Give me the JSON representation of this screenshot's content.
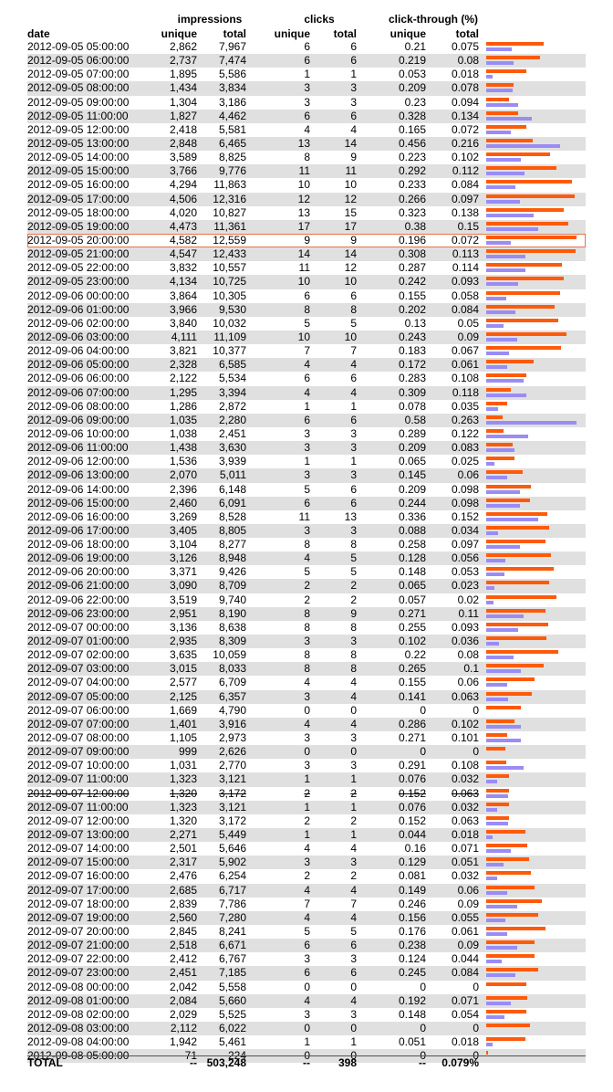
{
  "headers": {
    "group_impressions": "impressions",
    "group_clicks": "clicks",
    "group_ctr": "click-through (%)",
    "date": "date",
    "imp_unique": "unique",
    "imp_total": "total",
    "clk_unique": "unique",
    "clk_total": "total",
    "ctr_unique": "unique",
    "ctr_total": "total"
  },
  "rows": [
    [
      "2012-09-05 05:00:00",
      "2,862",
      "7,967",
      "6",
      "6",
      "0.21",
      "0.075"
    ],
    [
      "2012-09-05 06:00:00",
      "2,737",
      "7,474",
      "6",
      "6",
      "0.219",
      "0.08"
    ],
    [
      "2012-09-05 07:00:00",
      "1,895",
      "5,586",
      "1",
      "1",
      "0.053",
      "0.018"
    ],
    [
      "2012-09-05 08:00:00",
      "1,434",
      "3,834",
      "3",
      "3",
      "0.209",
      "0.078"
    ],
    [
      "2012-09-05 09:00:00",
      "1,304",
      "3,186",
      "3",
      "3",
      "0.23",
      "0.094"
    ],
    [
      "2012-09-05 11:00:00",
      "1,827",
      "4,462",
      "6",
      "6",
      "0.328",
      "0.134"
    ],
    [
      "2012-09-05 12:00:00",
      "2,418",
      "5,581",
      "4",
      "4",
      "0.165",
      "0.072"
    ],
    [
      "2012-09-05 13:00:00",
      "2,848",
      "6,465",
      "13",
      "14",
      "0.456",
      "0.216"
    ],
    [
      "2012-09-05 14:00:00",
      "3,589",
      "8,825",
      "8",
      "9",
      "0.223",
      "0.102"
    ],
    [
      "2012-09-05 15:00:00",
      "3,766",
      "9,776",
      "11",
      "11",
      "0.292",
      "0.112"
    ],
    [
      "2012-09-05 16:00:00",
      "4,294",
      "11,863",
      "10",
      "10",
      "0.233",
      "0.084"
    ],
    [
      "2012-09-05 17:00:00",
      "4,506",
      "12,316",
      "12",
      "12",
      "0.266",
      "0.097"
    ],
    [
      "2012-09-05 18:00:00",
      "4,020",
      "10,827",
      "13",
      "15",
      "0.323",
      "0.138"
    ],
    [
      "2012-09-05 19:00:00",
      "4,473",
      "11,361",
      "17",
      "17",
      "0.38",
      "0.15"
    ],
    [
      "2012-09-05 20:00:00",
      "4,582",
      "12,559",
      "9",
      "9",
      "0.196",
      "0.072"
    ],
    [
      "2012-09-05 21:00:00",
      "4,547",
      "12,433",
      "14",
      "14",
      "0.308",
      "0.113"
    ],
    [
      "2012-09-05 22:00:00",
      "3,832",
      "10,557",
      "11",
      "12",
      "0.287",
      "0.114"
    ],
    [
      "2012-09-05 23:00:00",
      "4,134",
      "10,725",
      "10",
      "10",
      "0.242",
      "0.093"
    ],
    [
      "2012-09-06 00:00:00",
      "3,864",
      "10,305",
      "6",
      "6",
      "0.155",
      "0.058"
    ],
    [
      "2012-09-06 01:00:00",
      "3,966",
      "9,530",
      "8",
      "8",
      "0.202",
      "0.084"
    ],
    [
      "2012-09-06 02:00:00",
      "3,840",
      "10,032",
      "5",
      "5",
      "0.13",
      "0.05"
    ],
    [
      "2012-09-06 03:00:00",
      "4,111",
      "11,109",
      "10",
      "10",
      "0.243",
      "0.09"
    ],
    [
      "2012-09-06 04:00:00",
      "3,821",
      "10,377",
      "7",
      "7",
      "0.183",
      "0.067"
    ],
    [
      "2012-09-06 05:00:00",
      "2,328",
      "6,585",
      "4",
      "4",
      "0.172",
      "0.061"
    ],
    [
      "2012-09-06 06:00:00",
      "2,122",
      "5,534",
      "6",
      "6",
      "0.283",
      "0.108"
    ],
    [
      "2012-09-06 07:00:00",
      "1,295",
      "3,394",
      "4",
      "4",
      "0.309",
      "0.118"
    ],
    [
      "2012-09-06 08:00:00",
      "1,286",
      "2,872",
      "1",
      "1",
      "0.078",
      "0.035"
    ],
    [
      "2012-09-06 09:00:00",
      "1,035",
      "2,280",
      "6",
      "6",
      "0.58",
      "0.263"
    ],
    [
      "2012-09-06 10:00:00",
      "1,038",
      "2,451",
      "3",
      "3",
      "0.289",
      "0.122"
    ],
    [
      "2012-09-06 11:00:00",
      "1,438",
      "3,630",
      "3",
      "3",
      "0.209",
      "0.083"
    ],
    [
      "2012-09-06 12:00:00",
      "1,536",
      "3,939",
      "1",
      "1",
      "0.065",
      "0.025"
    ],
    [
      "2012-09-06 13:00:00",
      "2,070",
      "5,011",
      "3",
      "3",
      "0.145",
      "0.06"
    ],
    [
      "2012-09-06 14:00:00",
      "2,396",
      "6,148",
      "5",
      "6",
      "0.209",
      "0.098"
    ],
    [
      "2012-09-06 15:00:00",
      "2,460",
      "6,091",
      "6",
      "6",
      "0.244",
      "0.098"
    ],
    [
      "2012-09-06 16:00:00",
      "3,269",
      "8,528",
      "11",
      "13",
      "0.336",
      "0.152"
    ],
    [
      "2012-09-06 17:00:00",
      "3,405",
      "8,805",
      "3",
      "3",
      "0.088",
      "0.034"
    ],
    [
      "2012-09-06 18:00:00",
      "3,104",
      "8,277",
      "8",
      "8",
      "0.258",
      "0.097"
    ],
    [
      "2012-09-06 19:00:00",
      "3,126",
      "8,948",
      "4",
      "5",
      "0.128",
      "0.056"
    ],
    [
      "2012-09-06 20:00:00",
      "3,371",
      "9,426",
      "5",
      "5",
      "0.148",
      "0.053"
    ],
    [
      "2012-09-06 21:00:00",
      "3,090",
      "8,709",
      "2",
      "2",
      "0.065",
      "0.023"
    ],
    [
      "2012-09-06 22:00:00",
      "3,519",
      "9,740",
      "2",
      "2",
      "0.057",
      "0.02"
    ],
    [
      "2012-09-06 23:00:00",
      "2,951",
      "8,190",
      "8",
      "9",
      "0.271",
      "0.11"
    ],
    [
      "2012-09-07 00:00:00",
      "3,136",
      "8,638",
      "8",
      "8",
      "0.255",
      "0.093"
    ],
    [
      "2012-09-07 01:00:00",
      "2,935",
      "8,309",
      "3",
      "3",
      "0.102",
      "0.036"
    ],
    [
      "2012-09-07 02:00:00",
      "3,635",
      "10,059",
      "8",
      "8",
      "0.22",
      "0.08"
    ],
    [
      "2012-09-07 03:00:00",
      "3,015",
      "8,033",
      "8",
      "8",
      "0.265",
      "0.1"
    ],
    [
      "2012-09-07 04:00:00",
      "2,577",
      "6,709",
      "4",
      "4",
      "0.155",
      "0.06"
    ],
    [
      "2012-09-07 05:00:00",
      "2,125",
      "6,357",
      "3",
      "4",
      "0.141",
      "0.063"
    ],
    [
      "2012-09-07 06:00:00",
      "1,669",
      "4,790",
      "0",
      "0",
      "0",
      "0"
    ],
    [
      "2012-09-07 07:00:00",
      "1,401",
      "3,916",
      "4",
      "4",
      "0.286",
      "0.102"
    ],
    [
      "2012-09-07 08:00:00",
      "1,105",
      "2,973",
      "3",
      "3",
      "0.271",
      "0.101"
    ],
    [
      "2012-09-07 09:00:00",
      "999",
      "2,626",
      "0",
      "0",
      "0",
      "0"
    ],
    [
      "2012-09-07 10:00:00",
      "1,031",
      "2,770",
      "3",
      "3",
      "0.291",
      "0.108"
    ],
    [
      "2012-09-07 11:00:00",
      "1,323",
      "3,121",
      "1",
      "1",
      "0.076",
      "0.032"
    ],
    [
      "2012-09-07 12:00:00",
      "1,320",
      "3,172",
      "2",
      "2",
      "0.152",
      "0.063"
    ],
    [
      "2012-09-07 11:00:00",
      "1,323",
      "3,121",
      "1",
      "1",
      "0.076",
      "0.032"
    ],
    [
      "2012-09-07 12:00:00",
      "1,320",
      "3,172",
      "2",
      "2",
      "0.152",
      "0.063"
    ],
    [
      "2012-09-07 13:00:00",
      "2,271",
      "5,449",
      "1",
      "1",
      "0.044",
      "0.018"
    ],
    [
      "2012-09-07 14:00:00",
      "2,501",
      "5,646",
      "4",
      "4",
      "0.16",
      "0.071"
    ],
    [
      "2012-09-07 15:00:00",
      "2,317",
      "5,902",
      "3",
      "3",
      "0.129",
      "0.051"
    ],
    [
      "2012-09-07 16:00:00",
      "2,476",
      "6,254",
      "2",
      "2",
      "0.081",
      "0.032"
    ],
    [
      "2012-09-07 17:00:00",
      "2,685",
      "6,717",
      "4",
      "4",
      "0.149",
      "0.06"
    ],
    [
      "2012-09-07 18:00:00",
      "2,839",
      "7,786",
      "7",
      "7",
      "0.246",
      "0.09"
    ],
    [
      "2012-09-07 19:00:00",
      "2,560",
      "7,280",
      "4",
      "4",
      "0.156",
      "0.055"
    ],
    [
      "2012-09-07 20:00:00",
      "2,845",
      "8,241",
      "5",
      "5",
      "0.176",
      "0.061"
    ],
    [
      "2012-09-07 21:00:00",
      "2,518",
      "6,671",
      "6",
      "6",
      "0.238",
      "0.09"
    ],
    [
      "2012-09-07 22:00:00",
      "2,412",
      "6,767",
      "3",
      "3",
      "0.124",
      "0.044"
    ],
    [
      "2012-09-07 23:00:00",
      "2,451",
      "7,185",
      "6",
      "6",
      "0.245",
      "0.084"
    ],
    [
      "2012-09-08 00:00:00",
      "2,042",
      "5,558",
      "0",
      "0",
      "0",
      "0"
    ],
    [
      "2012-09-08 01:00:00",
      "2,084",
      "5,660",
      "4",
      "4",
      "0.192",
      "0.071"
    ],
    [
      "2012-09-08 02:00:00",
      "2,029",
      "5,525",
      "3",
      "3",
      "0.148",
      "0.054"
    ],
    [
      "2012-09-08 03:00:00",
      "2,112",
      "6,022",
      "0",
      "0",
      "0",
      "0"
    ],
    [
      "2012-09-08 04:00:00",
      "1,942",
      "5,461",
      "1",
      "1",
      "0.051",
      "0.018"
    ],
    [
      "2012-09-08 05:00:00",
      "71",
      "224",
      "0",
      "0",
      "0",
      "0"
    ]
  ],
  "highlighted_row_index": 14,
  "struck_row_index": 54,
  "total": {
    "label": "TOTAL",
    "imp_unique": "--",
    "imp_total": "503,248",
    "clk_unique": "--",
    "clk_total": "398",
    "ctr_unique": "--",
    "ctr_total": "0.079%"
  },
  "colors": {
    "impressions_bar": "#ff5a0a",
    "ctr_bar": "#9a8cf5",
    "row_shade": "#e0e0e0",
    "highlight": "#e8734a"
  }
}
